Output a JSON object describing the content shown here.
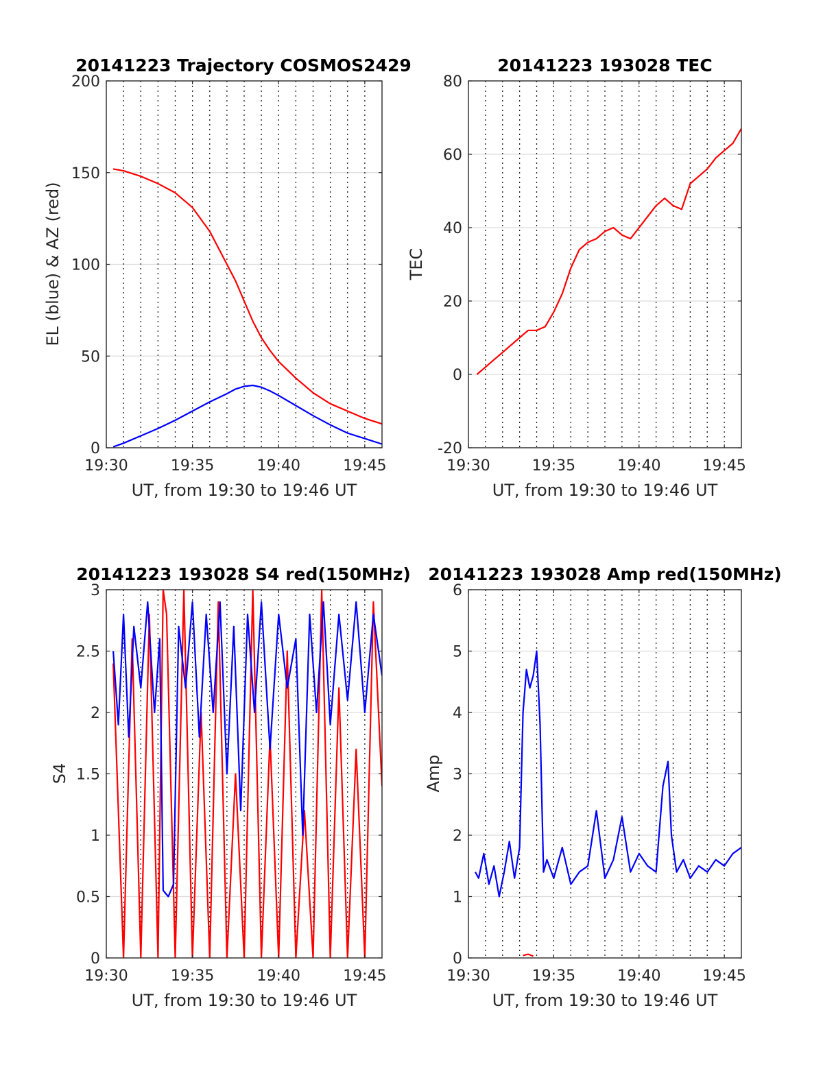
{
  "colors": {
    "el": "#0000ff",
    "az": "#ff0000",
    "tec": "#ff0000",
    "s4_red": "#ff0000",
    "s4_blue": "#0000ff",
    "amp_blue": "#0000ff",
    "amp_red": "#ff0000"
  },
  "chart_data": [
    {
      "id": "trajectory",
      "type": "line",
      "title": "20141223 Trajectory COSMOS2429",
      "xlabel": "UT, from 19:30 to 19:46 UT",
      "ylabel": "EL (blue) & AZ (red)",
      "xlim": [
        0,
        16
      ],
      "ylim": [
        0,
        200
      ],
      "xticks": [
        0,
        5,
        10,
        15
      ],
      "xtick_labels": [
        "19:30",
        "19:35",
        "19:40",
        "19:45"
      ],
      "yticks": [
        0,
        50,
        100,
        150,
        200
      ],
      "ytick_labels": [
        "0",
        "50",
        "100",
        "150",
        "200"
      ],
      "vgrid_minutes": [
        1,
        2,
        3,
        4,
        5,
        6,
        7,
        8,
        9,
        10,
        11,
        12,
        13,
        14,
        15
      ],
      "grid": true,
      "series": [
        {
          "color": "#ff0000",
          "x": [
            0.4,
            1,
            2,
            3,
            4,
            5,
            6,
            7,
            7.5,
            8,
            8.5,
            9,
            9.5,
            10,
            11,
            12,
            13,
            14,
            15,
            16
          ],
          "y": [
            152,
            151,
            148,
            144,
            139,
            131,
            118,
            100,
            91,
            80,
            69,
            60,
            53,
            47,
            38,
            30,
            24,
            20,
            16,
            13
          ]
        },
        {
          "color": "#0000ff",
          "x": [
            0.4,
            1,
            2,
            3,
            4,
            5,
            6,
            7,
            7.5,
            8,
            8.5,
            9,
            9.5,
            10,
            11,
            12,
            13,
            14,
            15,
            16
          ],
          "y": [
            0.5,
            2.5,
            6.5,
            10.5,
            15,
            20,
            25,
            29.5,
            32,
            33.5,
            34,
            33,
            31,
            28.5,
            23,
            17.5,
            12.5,
            8,
            5,
            2
          ]
        }
      ]
    },
    {
      "id": "tec",
      "type": "line",
      "title": "20141223 193028 TEC",
      "xlabel": "UT, from 19:30 to 19:46 UT",
      "ylabel": "TEC",
      "xlim": [
        0,
        16
      ],
      "ylim": [
        -20,
        80
      ],
      "xticks": [
        0,
        5,
        10,
        15
      ],
      "xtick_labels": [
        "19:30",
        "19:35",
        "19:40",
        "19:45"
      ],
      "yticks": [
        -20,
        0,
        20,
        40,
        60,
        80
      ],
      "ytick_labels": [
        "-20",
        "0",
        "20",
        "40",
        "60",
        "80"
      ],
      "vgrid_minutes": [
        1,
        2,
        3,
        4,
        5,
        6,
        7,
        8,
        9,
        10,
        11,
        12,
        13,
        14,
        15
      ],
      "grid": true,
      "series": [
        {
          "color": "#ff0000",
          "x": [
            0.5,
            1,
            1.5,
            2,
            2.5,
            3,
            3.5,
            4,
            4.5,
            5,
            5.5,
            6,
            6.5,
            7,
            7.5,
            8,
            8.5,
            9,
            9.5,
            10,
            10.5,
            11,
            11.5,
            12,
            12.5,
            13,
            13.5,
            14,
            14.5,
            15,
            15.5,
            16
          ],
          "y": [
            0,
            2,
            4,
            6,
            8,
            10,
            12,
            12,
            13,
            17,
            22,
            29,
            34,
            36,
            37,
            39,
            40,
            38,
            37,
            40,
            43,
            46,
            48,
            46,
            45,
            52,
            54,
            56,
            59,
            61,
            63,
            67
          ]
        }
      ]
    },
    {
      "id": "s4",
      "type": "line",
      "title": "20141223 193028 S4 red(150MHz)",
      "xlabel": "UT, from 19:30 to 19:46 UT",
      "ylabel": "S4",
      "xlim": [
        0,
        16
      ],
      "ylim": [
        0,
        3
      ],
      "xticks": [
        0,
        5,
        10,
        15
      ],
      "xtick_labels": [
        "19:30",
        "19:35",
        "19:40",
        "19:45"
      ],
      "yticks": [
        0,
        0.5,
        1,
        1.5,
        2,
        2.5,
        3
      ],
      "ytick_labels": [
        "0",
        "0.5",
        "1",
        "1.5",
        "2",
        "2.5",
        "3"
      ],
      "vgrid_minutes": [
        1,
        2,
        3,
        4,
        5,
        6,
        7,
        8,
        9,
        10,
        11,
        12,
        13,
        14,
        15
      ],
      "grid": true,
      "series": [
        {
          "color": "#ff0000",
          "x": [
            0.4,
            1.0,
            1.5,
            2.0,
            2.5,
            3.0,
            3.3,
            3.5,
            4.0,
            4.5,
            5.0,
            5.5,
            6.0,
            6.5,
            7.0,
            7.5,
            8.0,
            8.5,
            9.0,
            9.5,
            10.0,
            10.5,
            11.0,
            11.5,
            12.0,
            12.5,
            13.0,
            13.5,
            14.0,
            14.5,
            15.0,
            15.5,
            16.0
          ],
          "y": [
            2.4,
            0.0,
            2.6,
            0.0,
            2.8,
            0.0,
            3.0,
            2.8,
            0.0,
            3.0,
            0.0,
            2.0,
            0.0,
            2.9,
            0.0,
            1.5,
            0.0,
            3.0,
            0.0,
            1.8,
            0.0,
            2.5,
            0.0,
            1.2,
            0.0,
            3.0,
            0.0,
            2.2,
            0.0,
            1.7,
            0.0,
            2.9,
            1.4
          ]
        },
        {
          "color": "#0000ff",
          "x": [
            0.4,
            0.7,
            1.0,
            1.3,
            1.6,
            2.0,
            2.4,
            2.8,
            3.1,
            3.3,
            3.6,
            3.9,
            4.2,
            4.6,
            5.0,
            5.4,
            5.8,
            6.2,
            6.6,
            7.0,
            7.4,
            7.8,
            8.2,
            8.6,
            9.0,
            9.5,
            10.0,
            10.5,
            11.0,
            11.4,
            11.8,
            12.2,
            12.6,
            13.0,
            13.5,
            14.0,
            14.5,
            15.0,
            15.5,
            16.0
          ],
          "y": [
            2.5,
            1.9,
            2.8,
            1.8,
            2.7,
            2.2,
            2.9,
            2.0,
            2.6,
            0.55,
            0.5,
            0.6,
            2.7,
            2.2,
            2.9,
            1.8,
            2.8,
            2.0,
            2.9,
            1.5,
            2.7,
            1.2,
            2.8,
            2.0,
            2.9,
            1.7,
            2.8,
            2.2,
            2.6,
            1.0,
            2.8,
            2.0,
            2.9,
            1.9,
            2.8,
            2.1,
            2.9,
            2.0,
            2.8,
            2.3
          ]
        }
      ]
    },
    {
      "id": "amp",
      "type": "line",
      "title": "20141223 193028 Amp red(150MHz)",
      "xlabel": "UT, from 19:30 to 19:46 UT",
      "ylabel": "Amp",
      "xlim": [
        0,
        16
      ],
      "ylim": [
        0,
        6
      ],
      "xticks": [
        0,
        5,
        10,
        15
      ],
      "xtick_labels": [
        "19:30",
        "19:35",
        "19:40",
        "19:45"
      ],
      "yticks": [
        0,
        1,
        2,
        3,
        4,
        5,
        6
      ],
      "ytick_labels": [
        "0",
        "1",
        "2",
        "3",
        "4",
        "5",
        "6"
      ],
      "vgrid_minutes": [
        1,
        2,
        3,
        4,
        5,
        6,
        7,
        8,
        9,
        10,
        11,
        12,
        13,
        14,
        15
      ],
      "grid": true,
      "series": [
        {
          "color": "#0000ff",
          "x": [
            0.4,
            0.6,
            0.9,
            1.2,
            1.5,
            1.8,
            2.1,
            2.4,
            2.7,
            3.0,
            3.2,
            3.4,
            3.6,
            3.8,
            4.0,
            4.2,
            4.4,
            4.6,
            5.0,
            5.5,
            6.0,
            6.5,
            7.0,
            7.5,
            8.0,
            8.5,
            9.0,
            9.5,
            10.0,
            10.5,
            11.0,
            11.4,
            11.7,
            11.9,
            12.2,
            12.6,
            13.0,
            13.5,
            14.0,
            14.5,
            15.0,
            15.5,
            16.0
          ],
          "y": [
            1.4,
            1.3,
            1.7,
            1.2,
            1.5,
            1.0,
            1.4,
            1.9,
            1.3,
            1.8,
            4.0,
            4.7,
            4.4,
            4.6,
            5.0,
            3.8,
            1.4,
            1.6,
            1.3,
            1.8,
            1.2,
            1.4,
            1.5,
            2.4,
            1.3,
            1.6,
            2.3,
            1.4,
            1.7,
            1.5,
            1.4,
            2.8,
            3.2,
            2.0,
            1.4,
            1.6,
            1.3,
            1.5,
            1.4,
            1.6,
            1.5,
            1.7,
            1.8
          ]
        },
        {
          "color": "#ff0000",
          "x": [
            3.2,
            3.5,
            3.8
          ],
          "y": [
            0.04,
            0.06,
            0.03
          ]
        }
      ]
    }
  ]
}
